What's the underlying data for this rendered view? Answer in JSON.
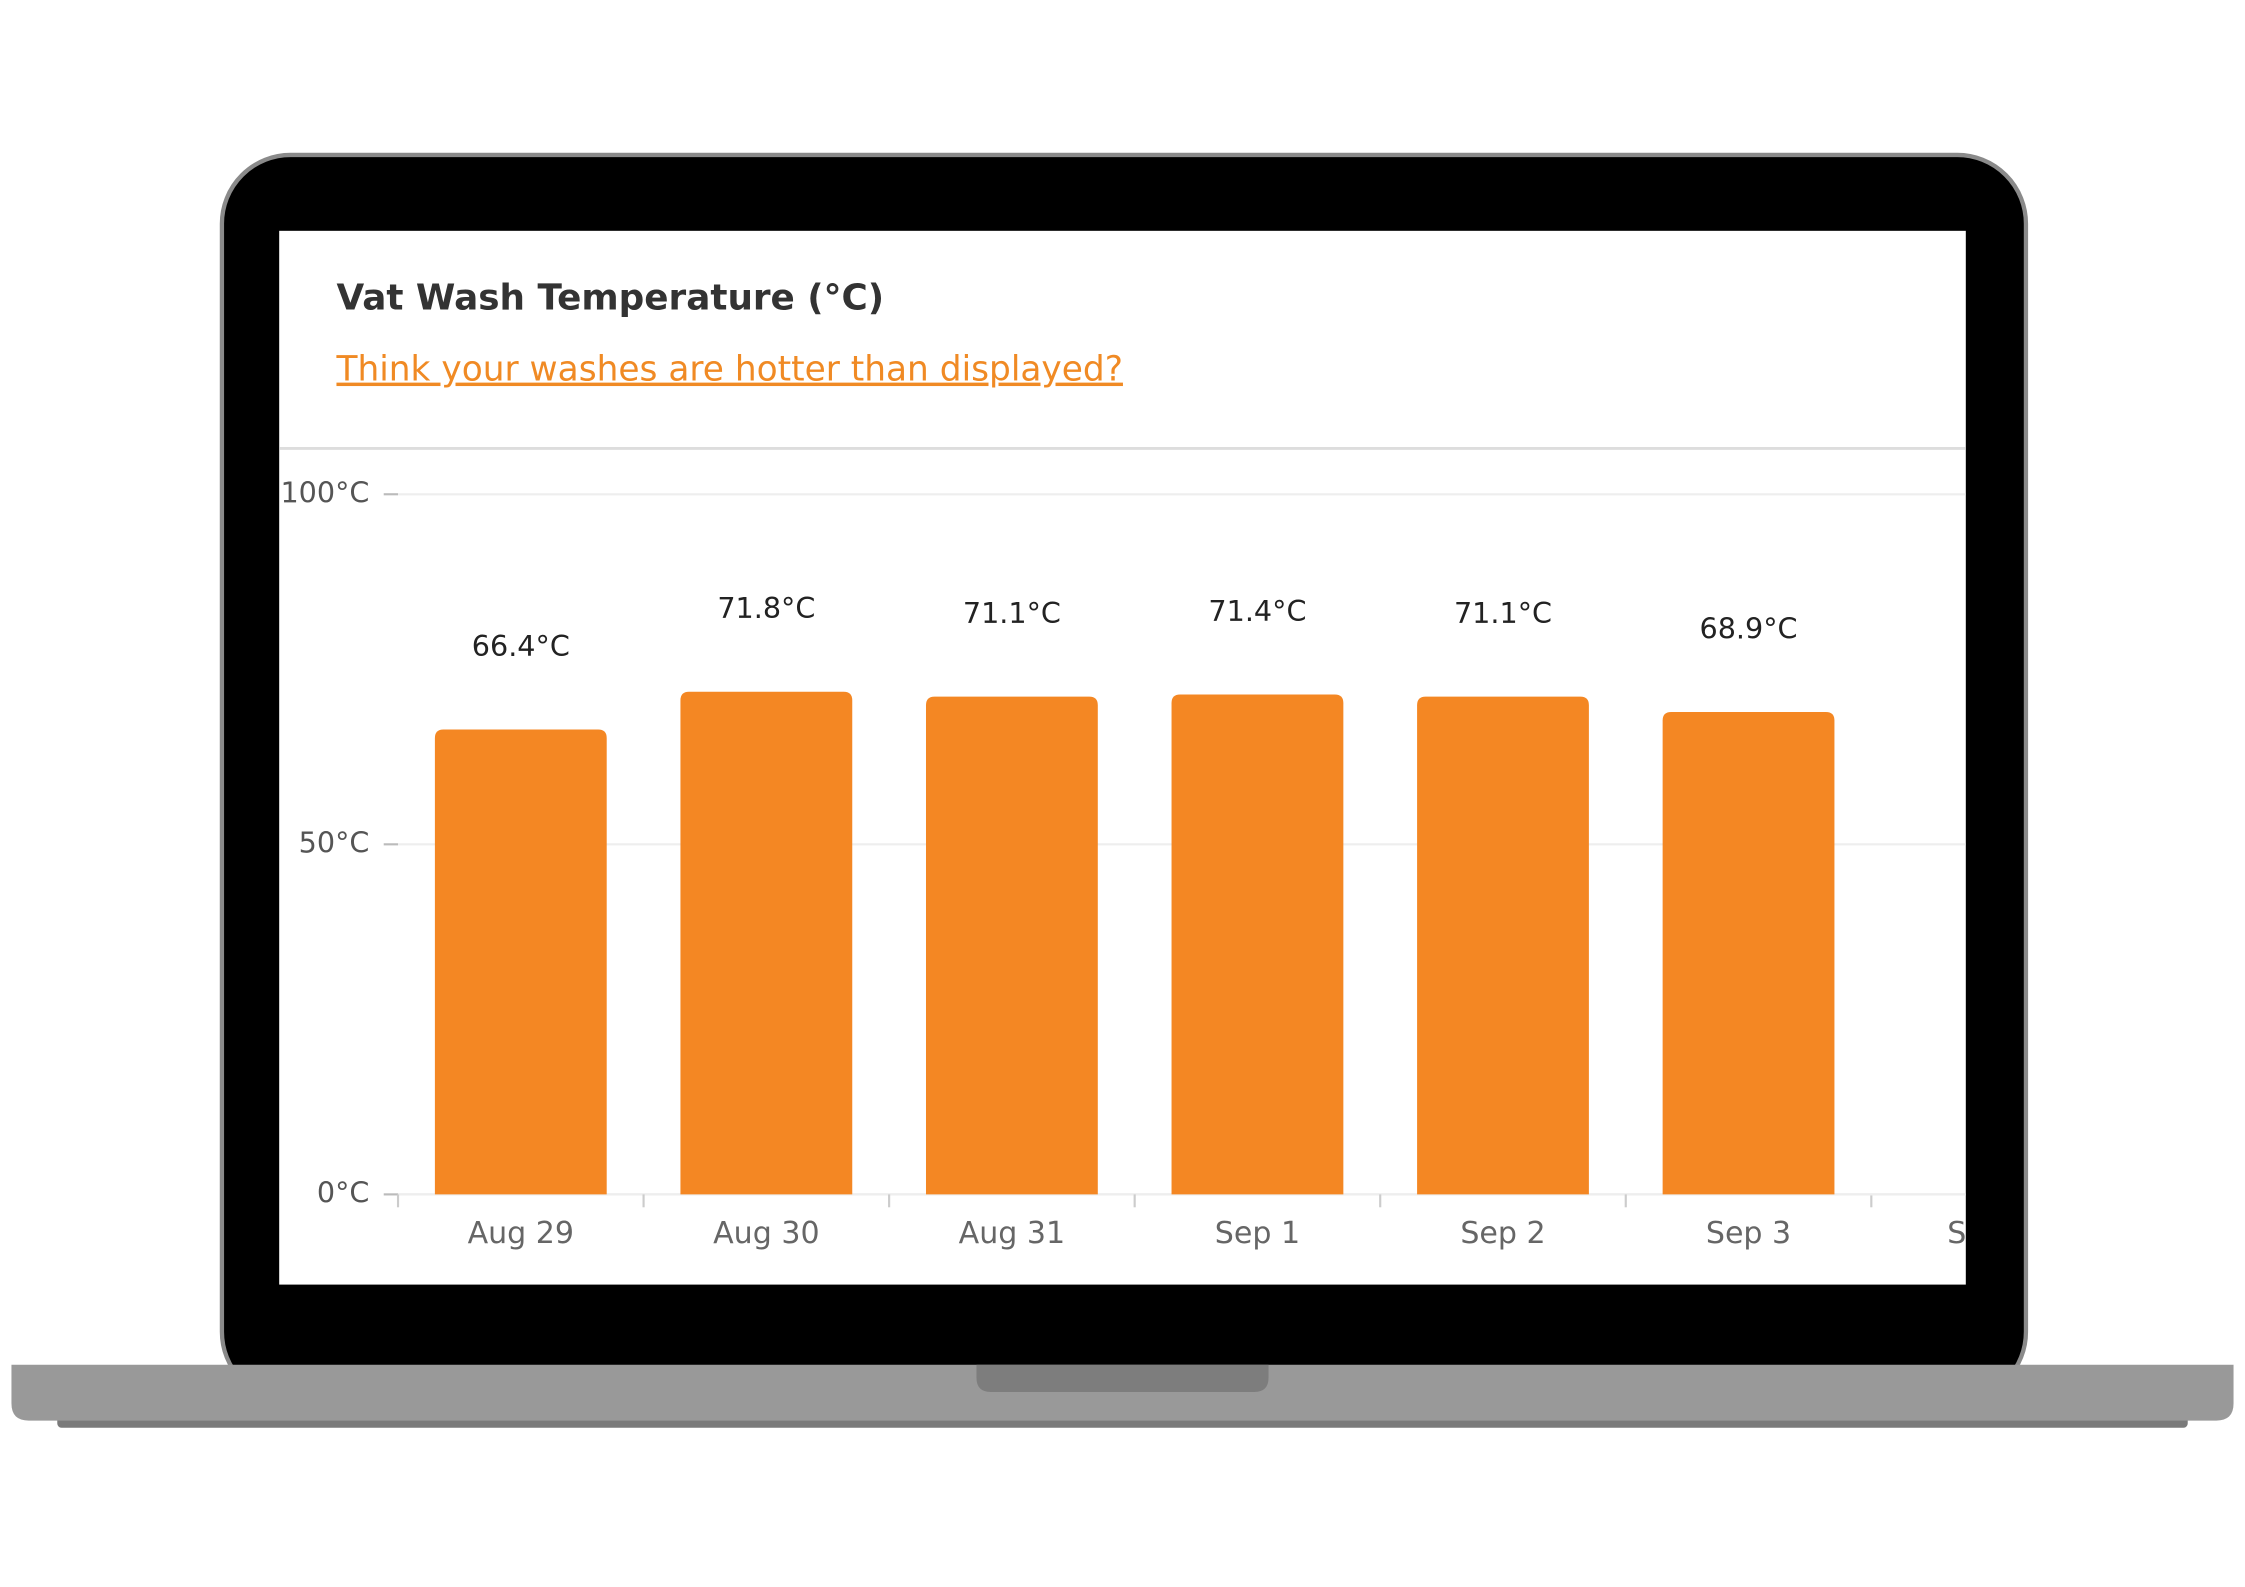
{
  "chart_data": {
    "type": "bar",
    "title": "Vat Wash Temperature (°C)",
    "subtitle": "Think your washes are hotter than displayed?",
    "categories": [
      "Aug 29",
      "Aug 30",
      "Aug 31",
      "Sep 1",
      "Sep 2",
      "Sep 3"
    ],
    "values": [
      66.4,
      71.8,
      71.1,
      71.4,
      71.1,
      68.9
    ],
    "value_labels": [
      "66.4°C",
      "71.8°C",
      "71.1°C",
      "71.4°C",
      "71.1°C",
      "68.9°C"
    ],
    "color": "#f48723",
    "ylim": [
      0,
      100
    ],
    "yticks": [
      {
        "value": 0,
        "label": "0°C"
      },
      {
        "value": 50,
        "label": "50°C"
      },
      {
        "value": 100,
        "label": "100°C"
      }
    ],
    "grid": true
  }
}
